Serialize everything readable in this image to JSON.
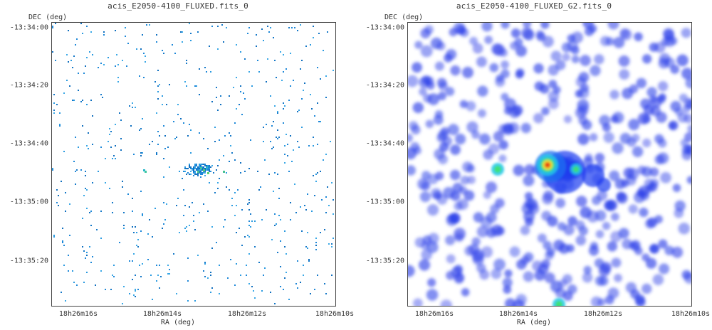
{
  "panels": [
    {
      "title": "acis_E2050-4100_FLUXED.fits_0",
      "ylabel": "DEC (deg)",
      "xlabel": "RA (deg)",
      "yticks": [
        "-13:34:00",
        "-13:34:20",
        "-13:34:40",
        "-13:35:00",
        "-13:35:20"
      ],
      "xticks": [
        "18h26m16s",
        "18h26m14s",
        "18h26m12s",
        "18h26m10s"
      ],
      "image_style": "sparse-pixels",
      "pixel_color": "#1e88d8"
    },
    {
      "title": "acis_E2050-4100_FLUXED_G2.fits_0",
      "ylabel": "DEC (deg)",
      "xlabel": "RA (deg)",
      "yticks": [
        "-13:34:00",
        "-13:34:20",
        "-13:34:40",
        "-13:35:00",
        "-13:35:20"
      ],
      "xticks": [
        "18h26m16s",
        "18h26m14s",
        "18h26m12s",
        "18h26m10s"
      ],
      "image_style": "gaussian-smoothed",
      "blob_color": "#2a3ee8"
    }
  ]
}
